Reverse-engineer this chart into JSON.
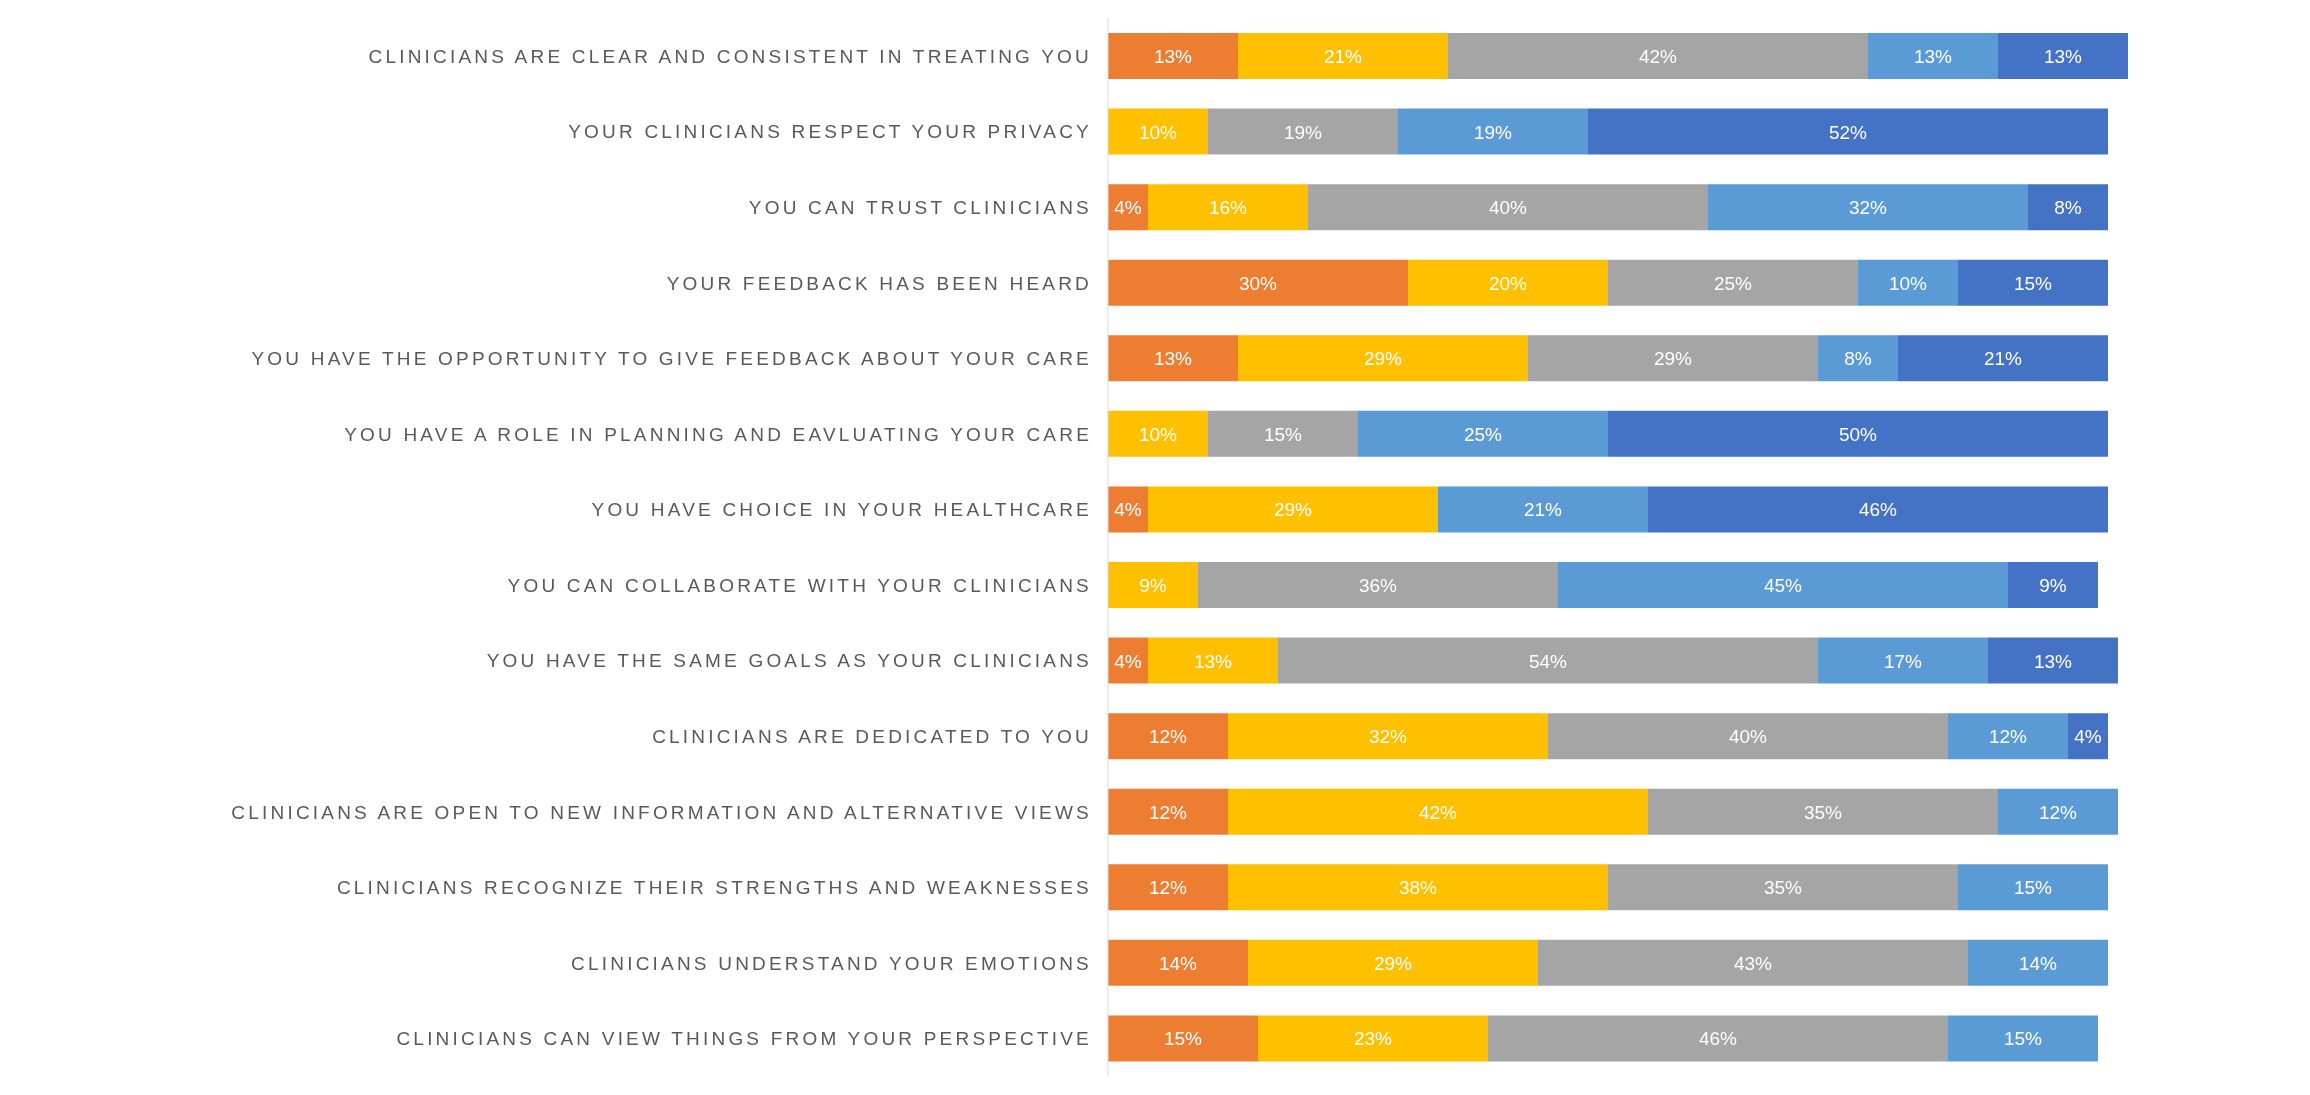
{
  "chart_data": {
    "type": "bar",
    "orientation": "horizontal",
    "stacked": true,
    "tick_labels": "y",
    "grid": false,
    "categories": [
      "CLINICIANS ARE CLEAR AND CONSISTENT IN TREATING YOU",
      "YOUR CLINICIANS RESPECT YOUR PRIVACY",
      "YOU CAN TRUST CLINICIANS",
      "YOUR FEEDBACK HAS BEEN HEARD",
      "YOU HAVE THE OPPORTUNITY TO GIVE FEEDBACK ABOUT YOUR CARE",
      "YOU HAVE A ROLE IN PLANNING AND EAVLUATING YOUR CARE",
      "YOU HAVE CHOICE IN YOUR HEALTHCARE",
      "YOU CAN COLLABORATE WITH YOUR CLINICIANS",
      "YOU HAVE THE SAME GOALS AS YOUR CLINICIANS",
      "CLINICIANS ARE DEDICATED TO YOU",
      "CLINICIANS ARE OPEN TO NEW INFORMATION AND ALTERNATIVE VIEWS",
      "CLINICIANS RECOGNIZE THEIR STRENGTHS AND WEAKNESSES",
      "CLINICIANS UNDERSTAND YOUR EMOTIONS",
      "CLINICIANS CAN VIEW THINGS FROM YOUR PERSPECTIVE"
    ],
    "series": [
      {
        "color": "#ed7d31",
        "values": [
          13,
          null,
          4,
          30,
          13,
          null,
          4,
          null,
          4,
          12,
          12,
          12,
          14,
          15
        ],
        "value_labels": [
          "13%",
          null,
          "4%",
          "30%",
          "13%",
          null,
          "4%",
          null,
          "4%",
          "12%",
          "12%",
          "12%",
          "14%",
          "15%"
        ]
      },
      {
        "color": "#ffc000",
        "values": [
          21,
          10,
          16,
          20,
          29,
          10,
          29,
          9,
          13,
          32,
          42,
          38,
          29,
          23
        ],
        "value_labels": [
          "21%",
          "10%",
          "16%",
          "20%",
          "29%",
          "10%",
          "29%",
          "9%",
          "13%",
          "32%",
          "42%",
          "38%",
          "29%",
          "23%"
        ]
      },
      {
        "color": "#a5a5a5",
        "values": [
          42,
          19,
          40,
          25,
          29,
          15,
          null,
          36,
          54,
          40,
          35,
          35,
          43,
          46
        ],
        "value_labels": [
          "42%",
          "19%",
          "40%",
          "25%",
          "29%",
          "15%",
          null,
          "36%",
          "54%",
          "40%",
          "35%",
          "35%",
          "43%",
          "46%"
        ]
      },
      {
        "color": "#5b9bd5",
        "values": [
          13,
          19,
          32,
          10,
          8,
          25,
          21,
          45,
          17,
          12,
          12,
          15,
          14,
          15
        ],
        "value_labels": [
          "13%",
          "19%",
          "32%",
          "10%",
          "8%",
          "25%",
          "21%",
          "45%",
          "17%",
          "12%",
          "12%",
          "15%",
          "14%",
          "15%"
        ]
      },
      {
        "color": "#4472c4",
        "values": [
          13,
          52,
          8,
          15,
          21,
          50,
          46,
          9,
          13,
          4,
          null,
          null,
          null,
          null
        ],
        "value_labels": [
          "13%",
          "52%",
          "8%",
          "15%",
          "21%",
          "50%",
          "46%",
          "9%",
          "13%",
          "4%",
          null,
          null,
          null,
          null
        ]
      }
    ]
  }
}
